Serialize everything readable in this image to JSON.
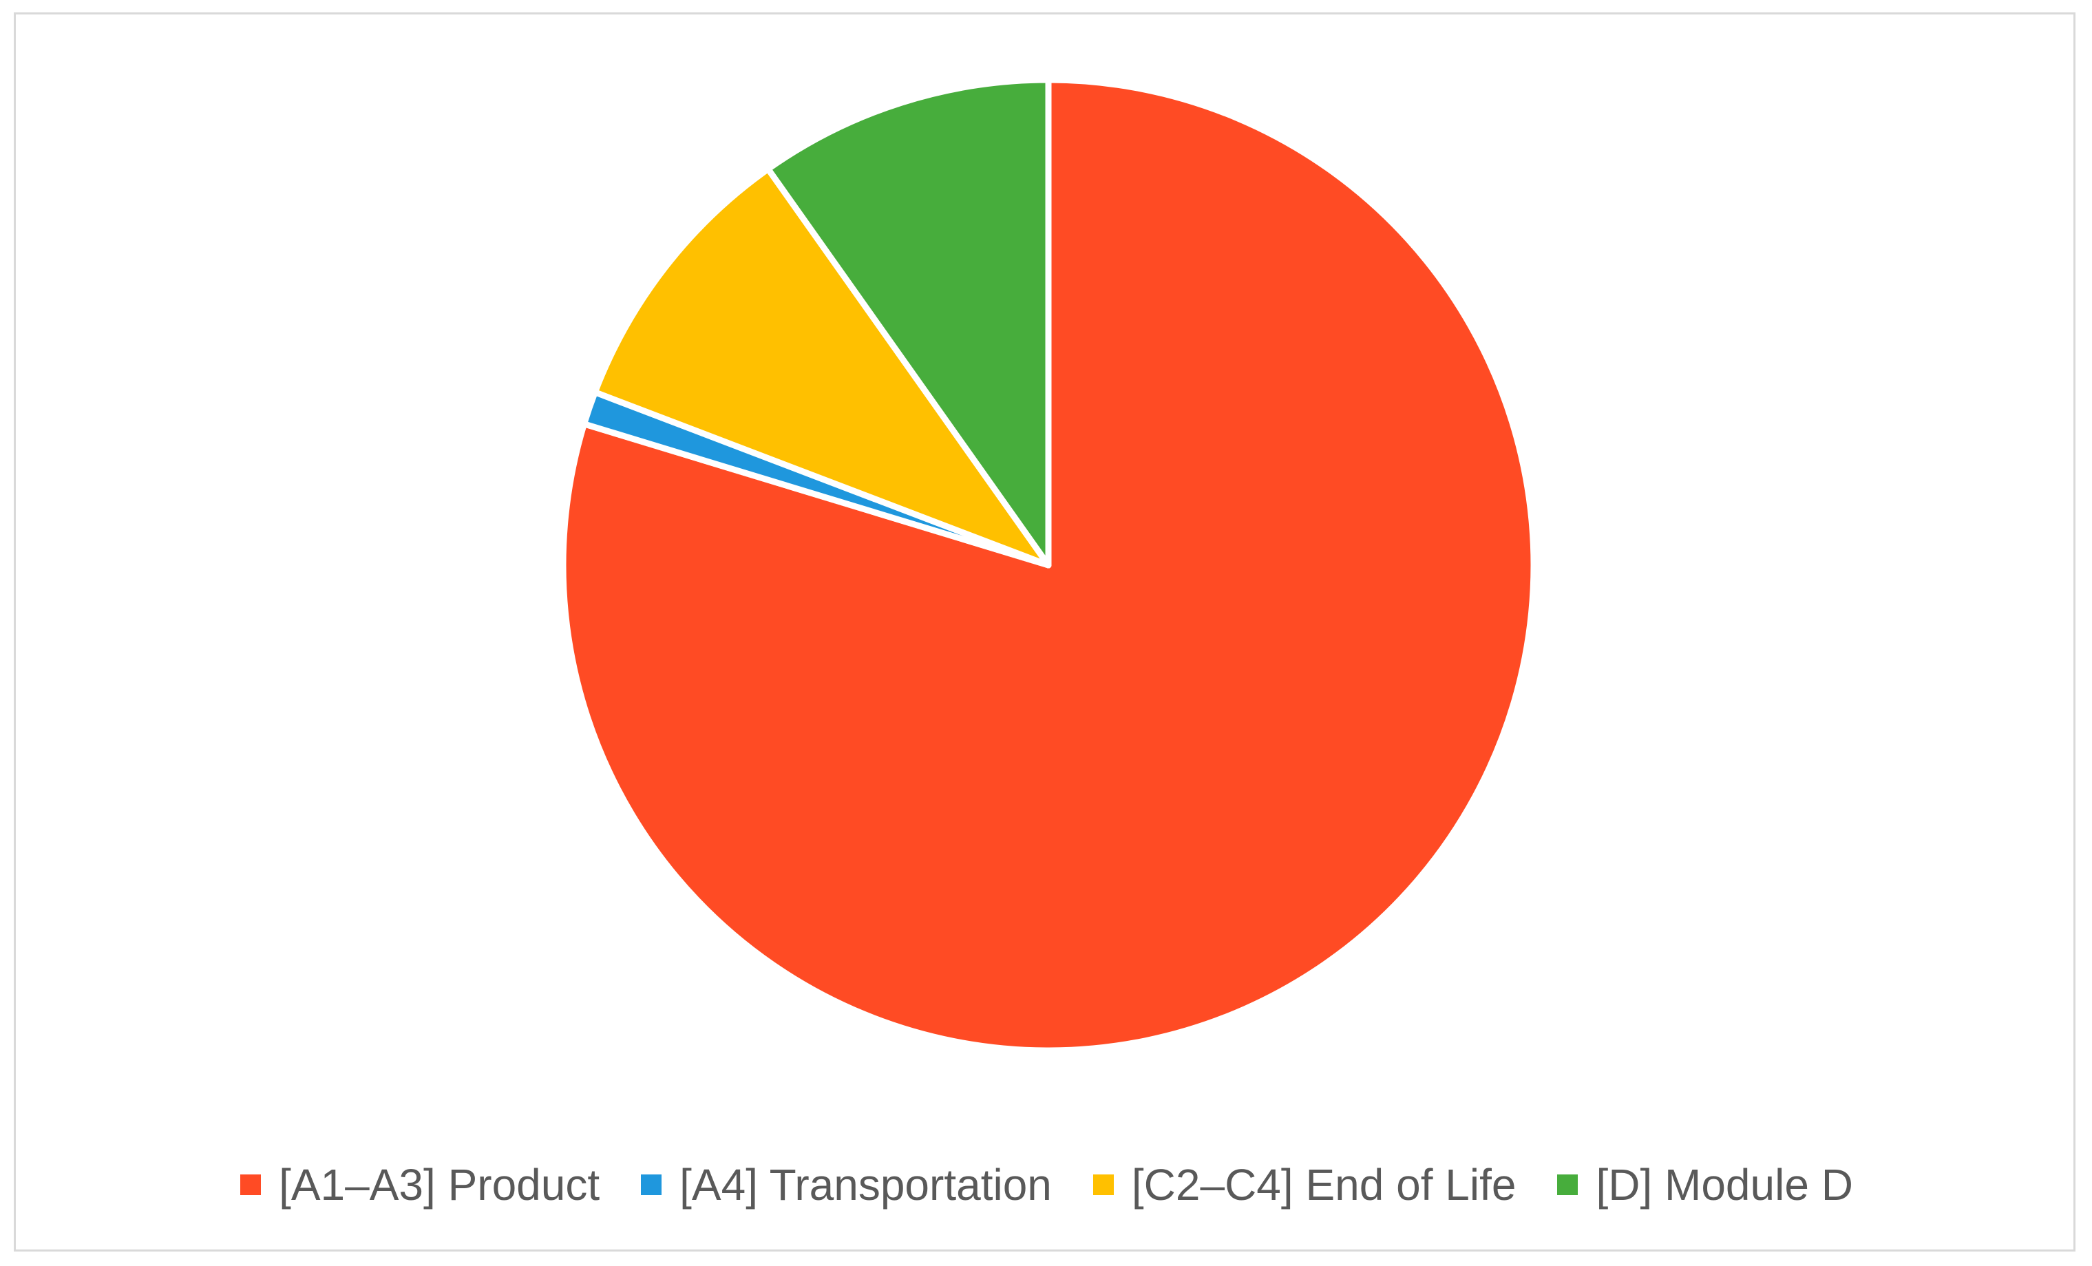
{
  "chart_data": {
    "type": "pie",
    "title": "",
    "categories": [
      "[A1–A3] Product",
      "[A4] Transportation",
      "[C2–C4] End of Life",
      "[D] Module D"
    ],
    "values": [
      79.7,
      1.1,
      9.4,
      9.8
    ],
    "colors": [
      "#ff4b24",
      "#1f97dd",
      "#ffc000",
      "#47ad3c"
    ],
    "start_angle_deg": 0,
    "direction": "clockwise",
    "legend_position": "bottom",
    "data_labels": false
  }
}
